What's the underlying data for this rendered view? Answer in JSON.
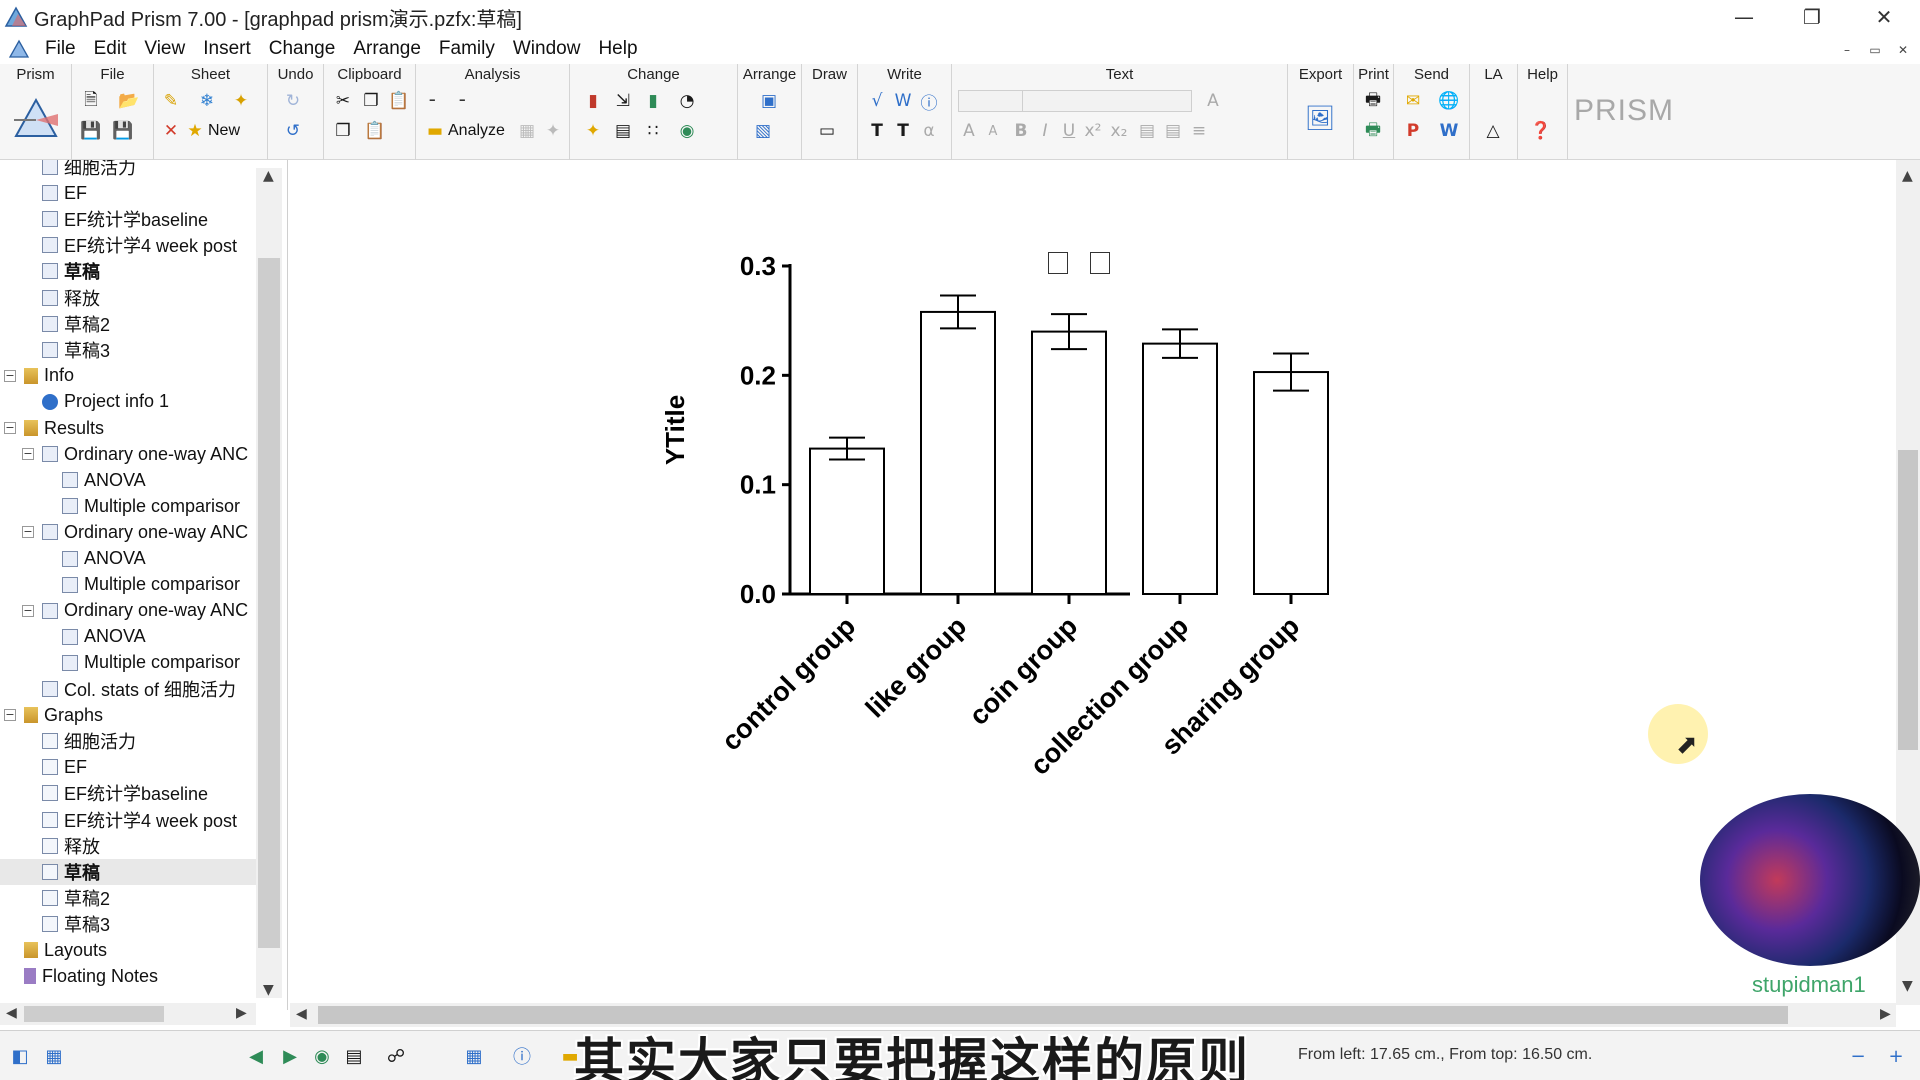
{
  "window": {
    "title": "GraphPad Prism 7.00 - [graphpad prism演示.pzfx:草稿]"
  },
  "menu": [
    "File",
    "Edit",
    "View",
    "Insert",
    "Change",
    "Arrange",
    "Family",
    "Window",
    "Help"
  ],
  "ribbon_groups": [
    "Prism",
    "File",
    "Sheet",
    "Undo",
    "Clipboard",
    "Analysis",
    "Change",
    "Arrange",
    "Draw",
    "Write",
    "Text",
    "Export",
    "Print",
    "Send",
    "LA",
    "Help"
  ],
  "ribbon": {
    "new_label": "New",
    "analyze_label": "Analyze",
    "prism_logo": "PRISM"
  },
  "navigator": {
    "items": [
      {
        "label": "细胞活力",
        "level": 2,
        "icon": "data-table-icon",
        "bold": false
      },
      {
        "label": "EF",
        "level": 2,
        "icon": "data-table-icon",
        "bold": false
      },
      {
        "label": "EF统计学baseline",
        "level": 2,
        "icon": "data-table-icon",
        "bold": false
      },
      {
        "label": "EF统计学4 week post",
        "level": 2,
        "icon": "data-table-icon",
        "bold": false
      },
      {
        "label": "草稿",
        "level": 2,
        "icon": "data-table-icon",
        "bold": true
      },
      {
        "label": "释放",
        "level": 2,
        "icon": "data-table-icon",
        "bold": false
      },
      {
        "label": "草稿2",
        "level": 2,
        "icon": "data-table-icon",
        "bold": false
      },
      {
        "label": "草稿3",
        "level": 2,
        "icon": "data-table-icon",
        "bold": false
      },
      {
        "label": "Info",
        "level": 1,
        "icon": "folder-icon",
        "bold": false,
        "expander": "−"
      },
      {
        "label": "Project info 1",
        "level": 2,
        "icon": "info-icon",
        "bold": false
      },
      {
        "label": "Results",
        "level": 1,
        "icon": "folder-icon",
        "bold": false,
        "expander": "−"
      },
      {
        "label": "Ordinary one-way ANC",
        "level": 2,
        "icon": "results-icon",
        "bold": false,
        "expander": "−"
      },
      {
        "label": "ANOVA",
        "level": 3,
        "icon": "results-icon",
        "bold": false
      },
      {
        "label": "Multiple comparisor",
        "level": 3,
        "icon": "results-icon",
        "bold": false
      },
      {
        "label": "Ordinary one-way ANC",
        "level": 2,
        "icon": "results-icon",
        "bold": false,
        "expander": "−"
      },
      {
        "label": "ANOVA",
        "level": 3,
        "icon": "results-icon",
        "bold": false
      },
      {
        "label": "Multiple comparisor",
        "level": 3,
        "icon": "results-icon",
        "bold": false
      },
      {
        "label": "Ordinary one-way ANC",
        "level": 2,
        "icon": "results-icon",
        "bold": false,
        "expander": "−"
      },
      {
        "label": "ANOVA",
        "level": 3,
        "icon": "results-icon",
        "bold": false
      },
      {
        "label": "Multiple comparisor",
        "level": 3,
        "icon": "results-icon",
        "bold": false
      },
      {
        "label": "Col. stats of 细胞活力",
        "level": 2,
        "icon": "results-icon",
        "bold": false
      },
      {
        "label": "Graphs",
        "level": 1,
        "icon": "folder-icon",
        "bold": false,
        "expander": "−"
      },
      {
        "label": "细胞活力",
        "level": 2,
        "icon": "graph-icon",
        "bold": false
      },
      {
        "label": "EF",
        "level": 2,
        "icon": "graph-icon",
        "bold": false
      },
      {
        "label": "EF统计学baseline",
        "level": 2,
        "icon": "graph-icon",
        "bold": false
      },
      {
        "label": "EF统计学4 week post",
        "level": 2,
        "icon": "graph-icon",
        "bold": false
      },
      {
        "label": "释放",
        "level": 2,
        "icon": "graph-icon",
        "bold": false
      },
      {
        "label": "草稿",
        "level": 2,
        "icon": "graph-icon",
        "bold": true,
        "selected": true
      },
      {
        "label": "草稿2",
        "level": 2,
        "icon": "graph-icon",
        "bold": false
      },
      {
        "label": "草稿3",
        "level": 2,
        "icon": "graph-icon",
        "bold": false
      },
      {
        "label": "Layouts",
        "level": 1,
        "icon": "folder-icon",
        "bold": false
      },
      {
        "label": "Floating Notes",
        "level": 1,
        "icon": "notes-icon",
        "bold": false
      }
    ]
  },
  "chart_data": {
    "type": "bar",
    "title": "",
    "ylabel": "YTitle",
    "xlabel": "",
    "ylim": [
      0,
      0.3
    ],
    "yticks": [
      "0.0",
      "0.1",
      "0.2",
      "0.3"
    ],
    "categories": [
      "control group",
      "like group",
      "coin group",
      "collection group",
      "sharing group"
    ],
    "values": [
      0.133,
      0.258,
      0.24,
      0.229,
      0.203
    ],
    "error": [
      0.01,
      0.015,
      0.016,
      0.013,
      0.017
    ],
    "grid": false,
    "legend": "none",
    "bar_fill": "#ffffff",
    "bar_stroke": "#000000"
  },
  "statusbar": {
    "position_text": "From left: 17.65 cm., From top: 16.50 cm.",
    "subtitle": "其实大家只要把握这样的原则"
  },
  "watermark": "stupidman1"
}
